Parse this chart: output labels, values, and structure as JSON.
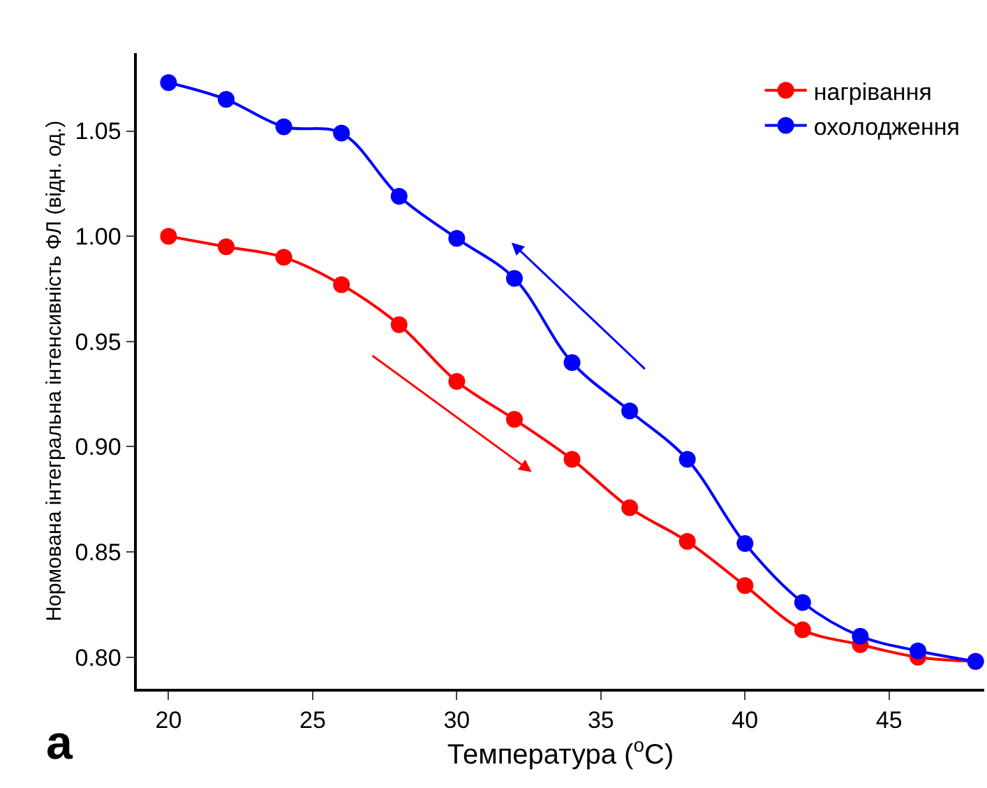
{
  "chart_data": {
    "type": "line",
    "xlabel": "Температура ($^{o}$C)",
    "ylabel": "Нормована інтегральна інтенсивність ФЛ (відн. од.)",
    "annotations": [
      "a"
    ],
    "x": [
      20,
      22,
      24,
      26,
      28,
      30,
      32,
      34,
      36,
      38,
      40,
      42,
      44,
      46,
      48
    ],
    "series": [
      {
        "name": "нагрівання",
        "color": "#ff0000",
        "values": [
          1.0,
          0.995,
          0.99,
          0.977,
          0.958,
          0.931,
          0.913,
          0.894,
          0.871,
          0.855,
          0.834,
          0.813,
          0.806,
          0.8,
          0.798
        ]
      },
      {
        "name": "охолодження",
        "color": "#0000ff",
        "values": [
          1.073,
          1.065,
          1.052,
          1.049,
          1.019,
          0.999,
          0.98,
          0.94,
          0.917,
          0.894,
          0.854,
          0.826,
          0.81,
          0.803,
          0.798
        ]
      }
    ],
    "xlim": [
      18.9,
      48.3
    ],
    "ylim": [
      0.785,
      1.087
    ],
    "xticks": [
      20,
      25,
      30,
      35,
      40,
      45
    ],
    "yticks": [
      {
        "value": 0.8,
        "label": "0.80"
      },
      0.85,
      {
        "value": 0.9,
        "label": "0.90"
      },
      0.95,
      {
        "value": 1,
        "label": "1.00"
      },
      1.05
    ],
    "grid": false,
    "legend": "top right",
    "marker": "circle",
    "line_style": "solid"
  }
}
